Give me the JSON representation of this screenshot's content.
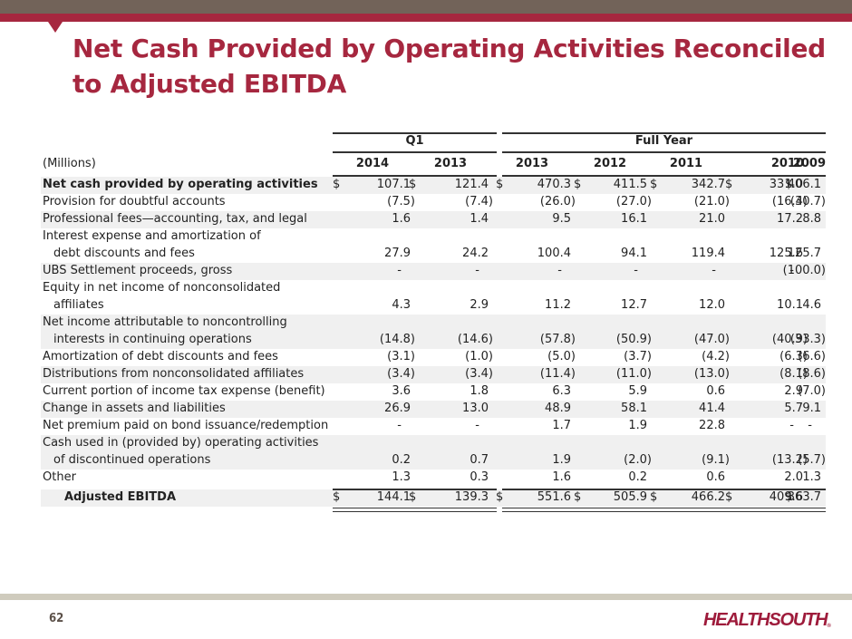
{
  "slide": {
    "title": "Net Cash Provided by Operating Activities Reconciled to Adjusted EBITDA",
    "title_line1": "Net Cash Provided by Operating Activities Reconciled",
    "title_line2": "to Adjusted EBITDA",
    "page_number": "62",
    "logo_text": "HEALTHSOUTH",
    "logo_mark": "®",
    "colors": {
      "brand_red": "#a6273f",
      "top_band": "#726359",
      "bottom_band": "#cfcbbd",
      "row_shade": "#f0f0f0"
    }
  },
  "table": {
    "units_label": "(Millions)",
    "group_headers": [
      {
        "label": "Q1",
        "columns": [
          0,
          1
        ]
      },
      {
        "label": "Full Year",
        "columns": [
          2,
          3,
          4,
          5,
          6
        ]
      }
    ],
    "columns": [
      "2014",
      "2013",
      "2013",
      "2012",
      "2011",
      "2010",
      "2009"
    ],
    "rows": [
      {
        "label": [
          "Net cash provided by operating activities"
        ],
        "bold": true,
        "currency": true,
        "shaded": true,
        "values": [
          "107.1",
          "121.4",
          "470.3",
          "411.5",
          "342.7",
          "331.0",
          "406.1"
        ]
      },
      {
        "label": [
          "Provision for doubtful accounts"
        ],
        "shaded": false,
        "values": [
          "(7.5)",
          "(7.4)",
          "(26.0)",
          "(27.0)",
          "(21.0)",
          "(16.4)",
          "(30.7)"
        ]
      },
      {
        "label": [
          "Professional fees—accounting, tax, and legal"
        ],
        "shaded": true,
        "values": [
          "1.6",
          "1.4",
          "9.5",
          "16.1",
          "21.0",
          "17.2",
          "8.8"
        ]
      },
      {
        "label": [
          "Interest expense and amortization of",
          "debt discounts and fees"
        ],
        "shaded": false,
        "values": [
          "27.9",
          "24.2",
          "100.4",
          "94.1",
          "119.4",
          "125.6",
          "125.7"
        ]
      },
      {
        "label": [
          "UBS Settlement proceeds, gross"
        ],
        "shaded": true,
        "values": [
          "-",
          "-",
          "-",
          "-",
          "-",
          "-",
          "(100.0)"
        ]
      },
      {
        "label": [
          "Equity in net income of nonconsolidated",
          "affiliates"
        ],
        "shaded": false,
        "values": [
          "4.3",
          "2.9",
          "11.2",
          "12.7",
          "12.0",
          "10.1",
          "4.6"
        ]
      },
      {
        "label": [
          "Net income attributable to noncontrolling",
          "interests in continuing operations"
        ],
        "shaded": true,
        "values": [
          "(14.8)",
          "(14.6)",
          "(57.8)",
          "(50.9)",
          "(47.0)",
          "(40.9)",
          "(33.3)"
        ]
      },
      {
        "label": [
          "Amortization of debt discounts and fees"
        ],
        "shaded": false,
        "values": [
          "(3.1)",
          "(1.0)",
          "(5.0)",
          "(3.7)",
          "(4.2)",
          "(6.3)",
          "(6.6)"
        ]
      },
      {
        "label": [
          "Distributions from nonconsolidated affiliates"
        ],
        "shaded": true,
        "values": [
          "(3.4)",
          "(3.4)",
          "(11.4)",
          "(11.0)",
          "(13.0)",
          "(8.1)",
          "(8.6)"
        ]
      },
      {
        "label": [
          "Current portion of income tax expense (benefit)"
        ],
        "shaded": false,
        "values": [
          "3.6",
          "1.8",
          "6.3",
          "5.9",
          "0.6",
          "2.9",
          "(7.0)"
        ]
      },
      {
        "label": [
          "Change in assets and liabilities"
        ],
        "shaded": true,
        "values": [
          "26.9",
          "13.0",
          "48.9",
          "58.1",
          "41.4",
          "5.7",
          "9.1"
        ]
      },
      {
        "label": [
          "Net premium paid on bond issuance/redemption"
        ],
        "shaded": false,
        "values": [
          "-",
          "-",
          "1.7",
          "1.9",
          "22.8",
          "-",
          "-"
        ]
      },
      {
        "label": [
          "Cash used in (provided by) operating activities",
          "of discontinued operations"
        ],
        "shaded": true,
        "values": [
          "0.2",
          "0.7",
          "1.9",
          "(2.0)",
          "(9.1)",
          "(13.2)",
          "(5.7)"
        ]
      },
      {
        "label": [
          "Other"
        ],
        "shaded": false,
        "values": [
          "1.3",
          "0.3",
          "1.6",
          "0.2",
          "0.6",
          "2.0",
          "1.3"
        ]
      },
      {
        "label": [
          "Adjusted EBITDA"
        ],
        "bold": true,
        "total": true,
        "currency": true,
        "shaded": true,
        "values": [
          "144.1",
          "139.3",
          "551.6",
          "505.9",
          "466.2",
          "409.6",
          "363.7"
        ]
      }
    ],
    "currency_symbol": "$"
  }
}
